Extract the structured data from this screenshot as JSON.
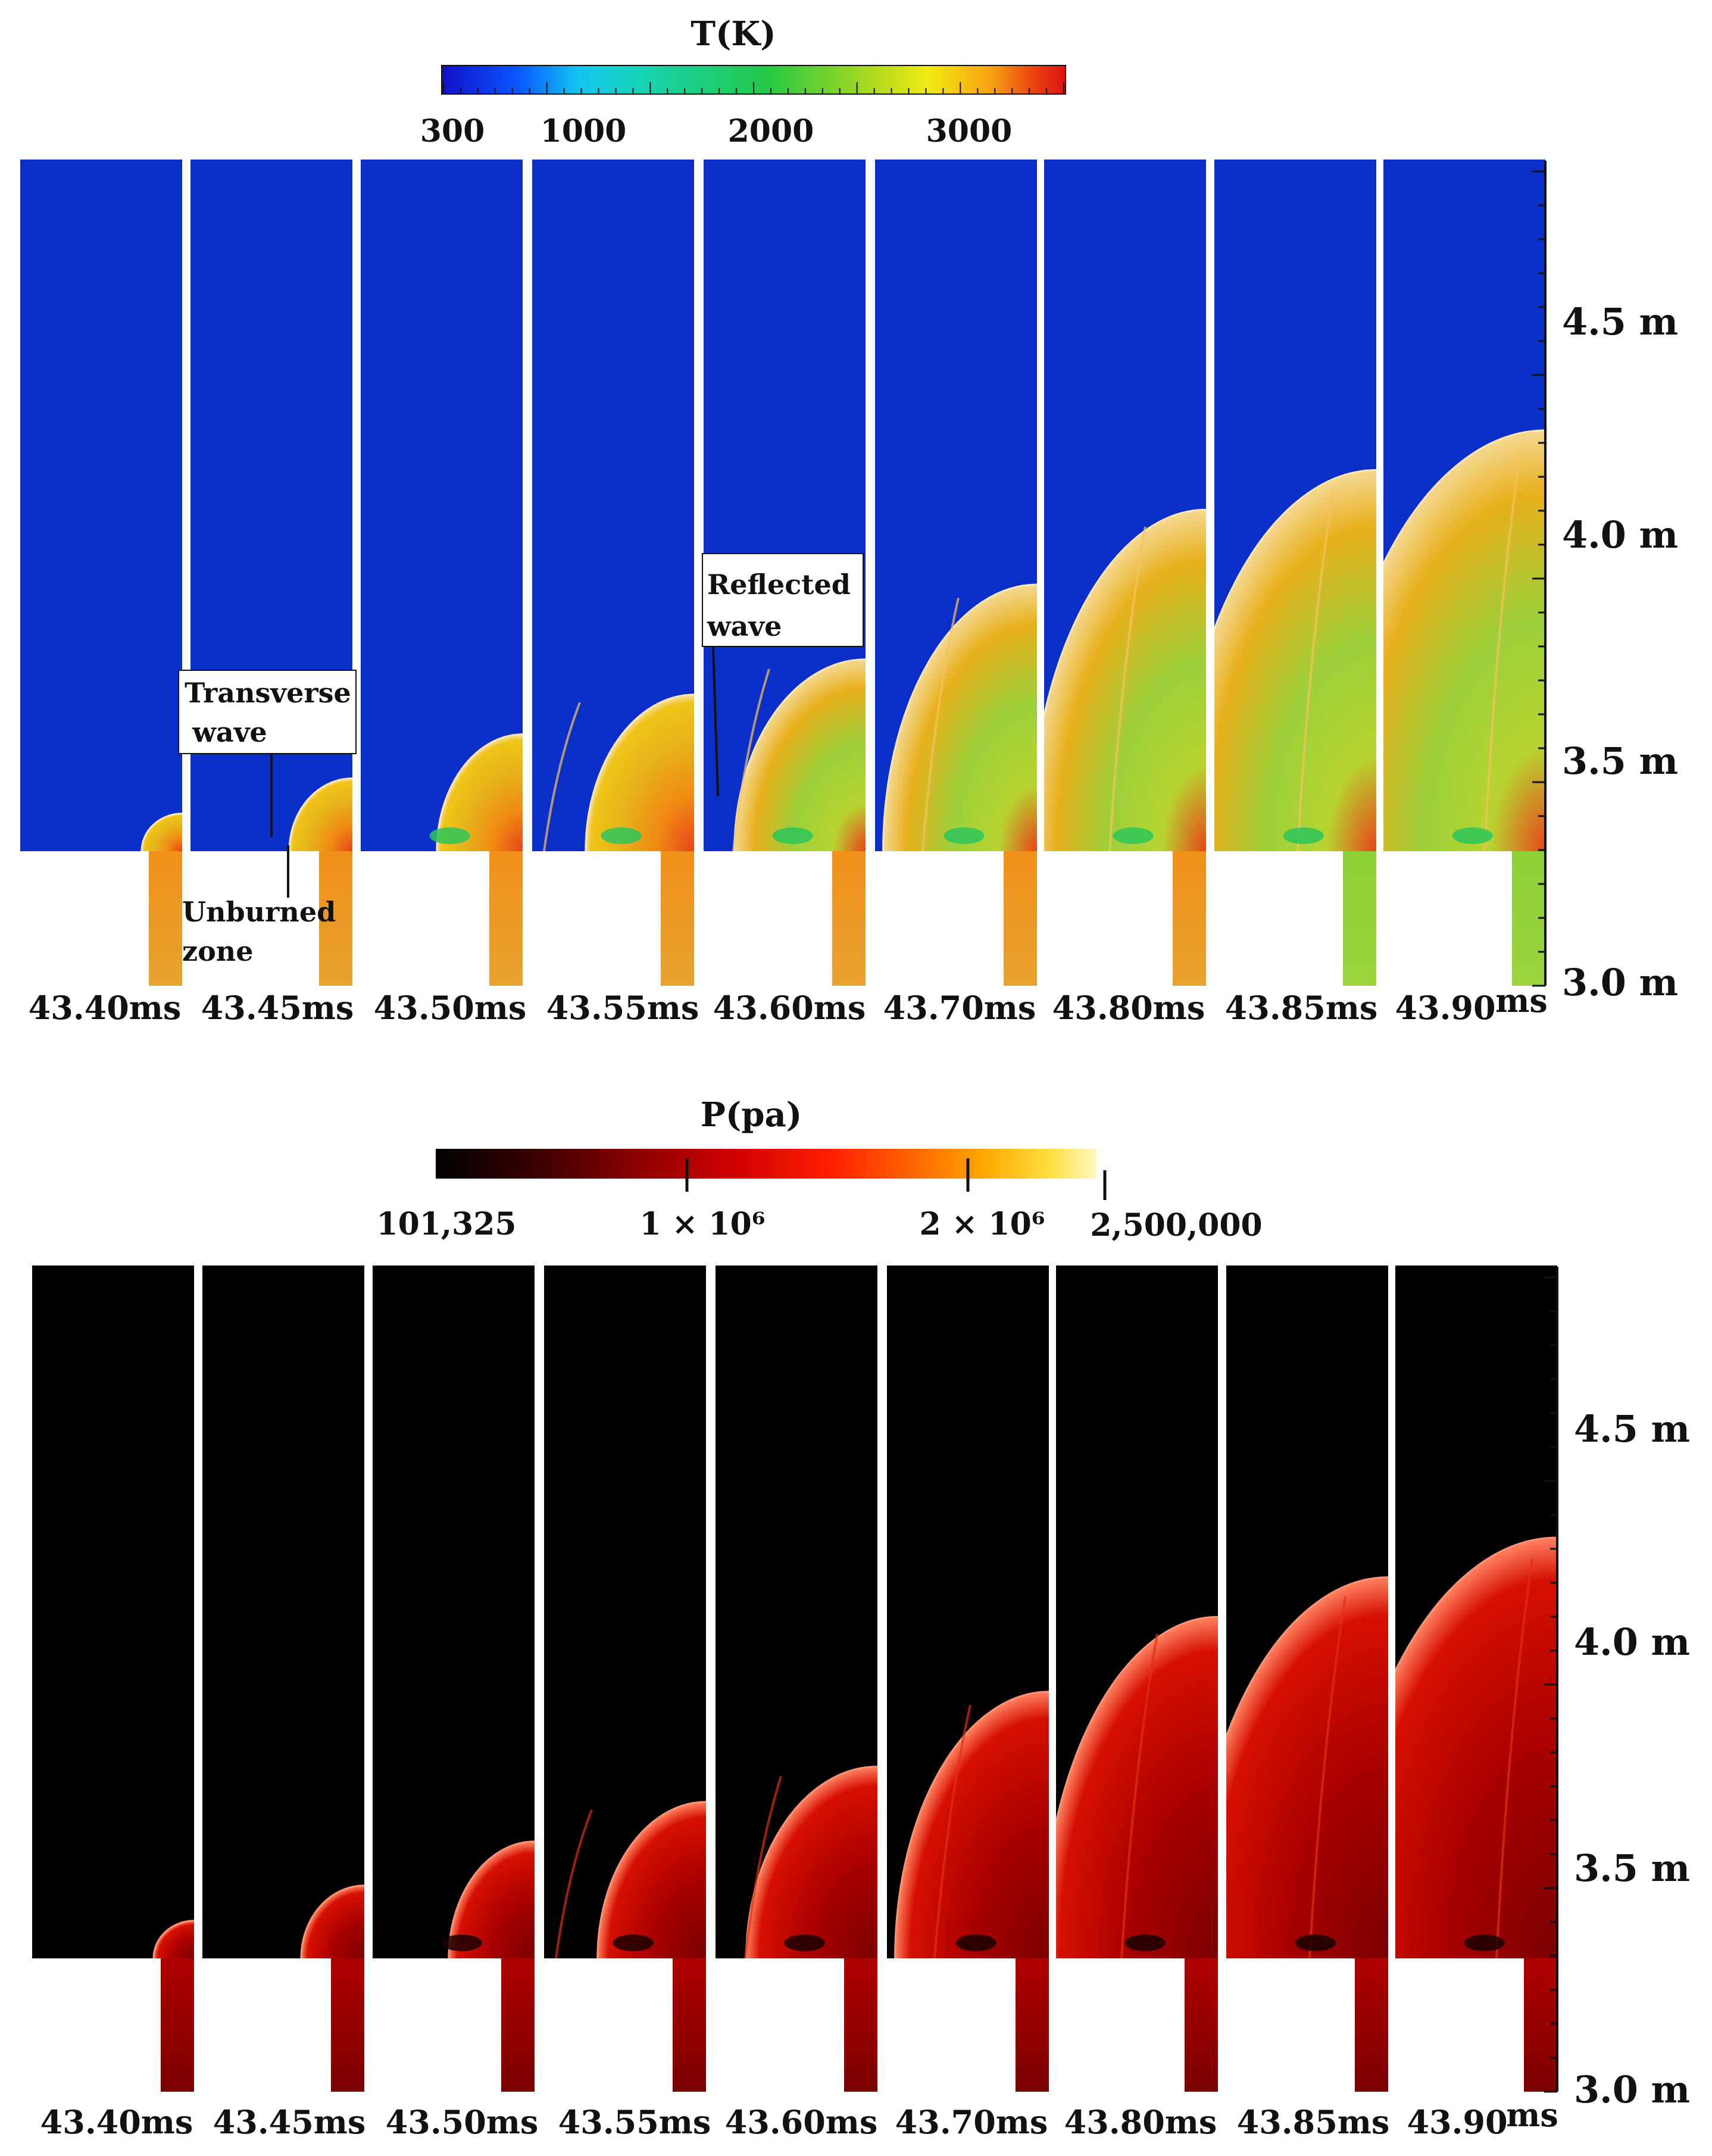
{
  "temperature_panel": {
    "title": "T(K)",
    "colorbar_ticks": [
      "300",
      "1000",
      "2000",
      "3000"
    ],
    "time_labels": [
      "43.40ms",
      "43.45ms",
      "43.50ms",
      "43.55ms",
      "43.60ms",
      "43.70ms",
      "43.80ms",
      "43.85ms",
      "43.90"
    ],
    "time_unit_suffix": "ms",
    "annotations": {
      "transverse_line1": "Transverse",
      "transverse_line2": "wave",
      "unburned_line1": "Unburned",
      "unburned_line2": "zone",
      "reflected_line1": "Reflected",
      "reflected_line2": "wave"
    },
    "height_axis": [
      "4.5 m",
      "4.0 m",
      "3.5 m",
      "3.0 m"
    ],
    "colors": {
      "unburned": "#0a2fc8",
      "colorbar": [
        "#1010c8",
        "#0a55ff",
        "#12c6f0",
        "#16d4b4",
        "#24c846",
        "#a6d820",
        "#f2ea12",
        "#f7a212",
        "#ea4212",
        "#dc1212"
      ]
    },
    "front_heights_m": [
      3.38,
      3.46,
      3.56,
      3.65,
      3.73,
      3.9,
      4.07,
      4.16,
      4.25
    ]
  },
  "pressure_panel": {
    "title": "P(pa)",
    "colorbar_ticks": [
      "101,325",
      "1 × 10⁶",
      "2 × 10⁶",
      "2,500,000"
    ],
    "time_labels": [
      "43.40ms",
      "43.45ms",
      "43.50ms",
      "43.55ms",
      "43.60ms",
      "43.70ms",
      "43.80ms",
      "43.85ms",
      "43.90"
    ],
    "time_unit_suffix": "ms",
    "height_axis": [
      "4.5 m",
      "4.0 m",
      "3.5 m",
      "3.0 m"
    ],
    "colors": {
      "ambient": "#000000",
      "colorbar": [
        "#000000",
        "#3a0000",
        "#8a0000",
        "#d00000",
        "#ff2000",
        "#ff6400",
        "#ffa800",
        "#ffe040",
        "#fff8c0"
      ]
    },
    "front_heights_m": [
      3.38,
      3.46,
      3.56,
      3.65,
      3.73,
      3.9,
      4.07,
      4.16,
      4.25
    ]
  }
}
